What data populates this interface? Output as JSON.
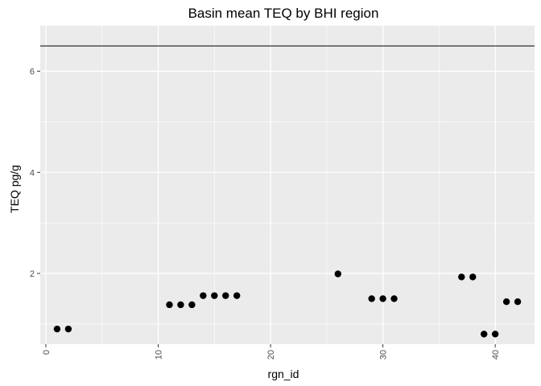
{
  "chart_data": {
    "type": "scatter",
    "title": "Basin mean TEQ by BHI region",
    "xlabel": "rgn_id",
    "ylabel": "TEQ pg/g",
    "xlim": [
      -0.5,
      43.5
    ],
    "ylim": [
      0.6,
      6.9
    ],
    "x_ticks": [
      0,
      10,
      20,
      30,
      40
    ],
    "y_ticks": [
      2,
      4,
      6
    ],
    "grid": true,
    "panel_background": "#ebebeb",
    "grid_color": "#ffffff",
    "point_color": "#000000",
    "reference_line": {
      "y": 6.5,
      "color": "#000000"
    },
    "points": [
      {
        "x": 1,
        "y": 0.9
      },
      {
        "x": 2,
        "y": 0.9
      },
      {
        "x": 11,
        "y": 1.38
      },
      {
        "x": 12,
        "y": 1.38
      },
      {
        "x": 13,
        "y": 1.38
      },
      {
        "x": 14,
        "y": 1.56
      },
      {
        "x": 15,
        "y": 1.56
      },
      {
        "x": 16,
        "y": 1.56
      },
      {
        "x": 17,
        "y": 1.56
      },
      {
        "x": 26,
        "y": 1.99
      },
      {
        "x": 29,
        "y": 1.5
      },
      {
        "x": 30,
        "y": 1.5
      },
      {
        "x": 31,
        "y": 1.5
      },
      {
        "x": 37,
        "y": 1.93
      },
      {
        "x": 38,
        "y": 1.93
      },
      {
        "x": 39,
        "y": 0.8
      },
      {
        "x": 40,
        "y": 0.8
      },
      {
        "x": 41,
        "y": 1.44
      },
      {
        "x": 42,
        "y": 1.44
      }
    ]
  }
}
